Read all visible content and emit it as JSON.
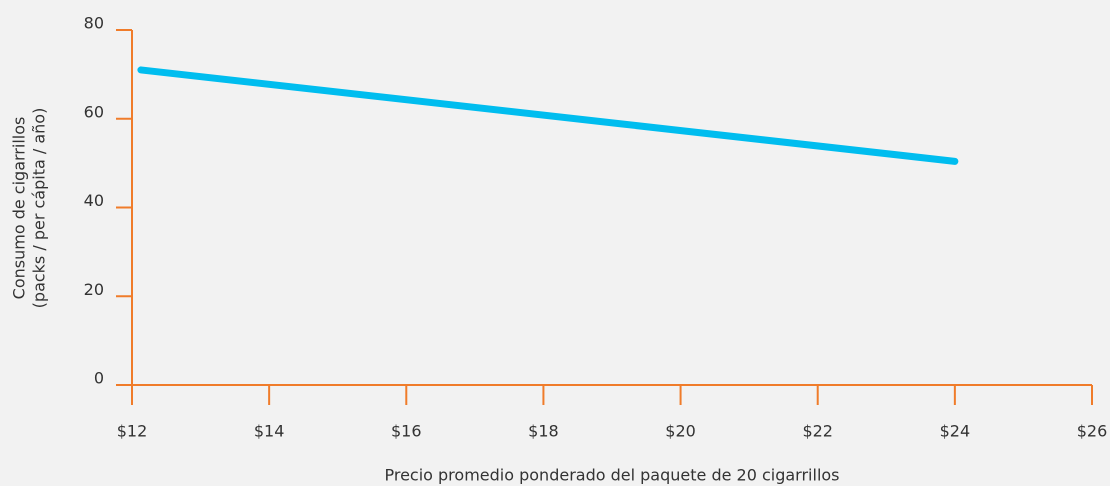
{
  "chart_data": {
    "type": "line",
    "xlabel": "Precio promedio ponderado del paquete de 20 cigarrillos",
    "ylabel": [
      "Consumo de cigarrillos",
      "(packs / per cápita / año)"
    ],
    "x": [
      12.13,
      24
    ],
    "series": [
      {
        "color": "#00bdef",
        "values": [
          71,
          50.4
        ]
      }
    ],
    "xlim": [
      12,
      26
    ],
    "xticks": [
      {
        "value": 12,
        "label": "$12"
      },
      {
        "value": 14,
        "label": "$14"
      },
      {
        "value": 16,
        "label": "$16"
      },
      {
        "value": 18,
        "label": "$18"
      },
      {
        "value": 20,
        "label": "$20"
      },
      {
        "value": 22,
        "label": "$22"
      },
      {
        "value": 24,
        "label": "$24"
      },
      {
        "value": 26,
        "label": "$26"
      }
    ],
    "ylim": [
      0,
      80
    ],
    "yticks": [
      0,
      20,
      40,
      60,
      80
    ],
    "axis_color": "#f07c2a"
  }
}
